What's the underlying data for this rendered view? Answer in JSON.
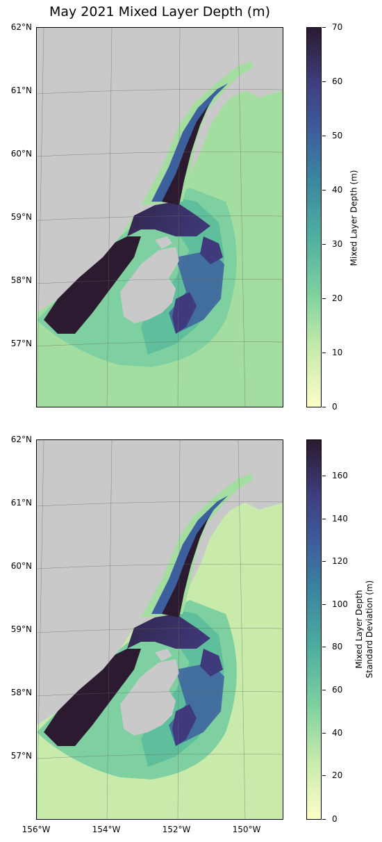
{
  "title": "May 2021 Mixed Layer Depth (m)",
  "lat_labels": [
    "62°N",
    "61°N",
    "60°N",
    "59°N",
    "58°N",
    "57°N"
  ],
  "lon_labels": [
    "156°W",
    "154°W",
    "152°W",
    "150°W"
  ],
  "panels": [
    {
      "colorbar": {
        "min": 0,
        "max": 70,
        "ticks": [
          "70",
          "60",
          "50",
          "40",
          "30",
          "20",
          "10",
          "0"
        ],
        "label_lines": [
          "Mixed Layer Depth (m)"
        ]
      }
    },
    {
      "colorbar": {
        "min": 0,
        "max": 177,
        "ticks": [
          "160",
          "140",
          "120",
          "100",
          "80",
          "60",
          "40",
          "20",
          "0"
        ],
        "label_lines": [
          "Mixed Layer Depth",
          "Standard Deviation (m)"
        ]
      }
    }
  ],
  "colors": {
    "land": "#c9c9c9",
    "island_light": "#d4d4d4",
    "cmap_low": "#fdfdc7",
    "cmap_mid1": "#a4dda0",
    "cmap_mid2": "#5fbf9c",
    "cmap_mid3": "#3a8a9e",
    "cmap_mid4": "#3c5f9e",
    "cmap_mid5": "#3f3a7c",
    "cmap_high": "#2b1a30"
  }
}
